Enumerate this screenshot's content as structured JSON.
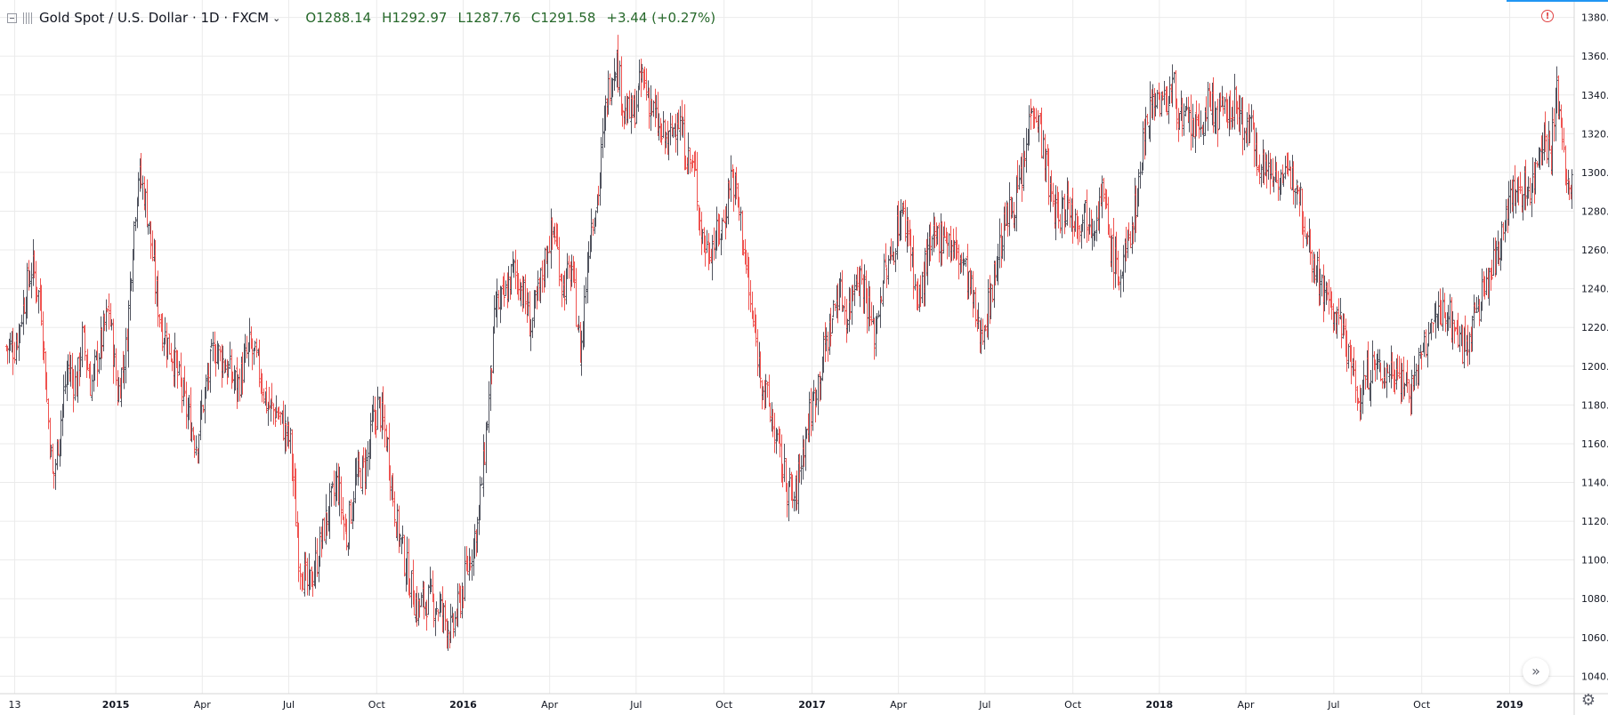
{
  "legend": {
    "title": "Gold Spot / U.S. Dollar · 1D · FXCM",
    "open": "O1288.14",
    "high": "H1292.97",
    "low": "L1287.76",
    "close": "C1291.58",
    "change": "+3.44 (+0.27%)"
  },
  "colors": {
    "up": "#26a69a",
    "down": "#ef5350",
    "bar": "#50535e",
    "grid": "#ebebeb",
    "axis_text": "#131722",
    "ohlc_text": "#26682a"
  },
  "icons": {
    "alert": "alert-circle-icon",
    "scroll": "double-chevron-right-icon",
    "settings": "gear-icon"
  },
  "chart_data": {
    "type": "ohlc",
    "y_ticks": [
      "1040.00",
      "1060.00",
      "1080.00",
      "1100.00",
      "1120.00",
      "1140.00",
      "1160.00",
      "1180.00",
      "1200.00",
      "1220.00",
      "1240.00",
      "1260.00",
      "1280.00",
      "1300.00",
      "1320.00",
      "1340.00",
      "1360.00",
      "1380.00"
    ],
    "ylim": [
      1031,
      1389
    ],
    "x_ticks": [
      {
        "label": "13",
        "t": 0
      },
      {
        "label": "2015",
        "t": 3.45
      },
      {
        "label": "Apr",
        "t": 6.4
      },
      {
        "label": "Jul",
        "t": 9.35
      },
      {
        "label": "Oct",
        "t": 12.35
      },
      {
        "label": "2016",
        "t": 15.3
      },
      {
        "label": "Apr",
        "t": 18.25
      },
      {
        "label": "Jul",
        "t": 21.2
      },
      {
        "label": "Oct",
        "t": 24.2
      },
      {
        "label": "2017",
        "t": 27.2
      },
      {
        "label": "Apr",
        "t": 30.15
      },
      {
        "label": "Jul",
        "t": 33.1
      },
      {
        "label": "Oct",
        "t": 36.1
      },
      {
        "label": "2018",
        "t": 39.05
      },
      {
        "label": "Apr",
        "t": 42
      },
      {
        "label": "Jul",
        "t": 45
      },
      {
        "label": "Oct",
        "t": 48
      },
      {
        "label": "2019",
        "t": 51
      },
      {
        "label": "",
        "t": 54
      }
    ],
    "x_range_months": [
      -0.5,
      53.2
    ],
    "anchors": [
      [
        0,
        1210
      ],
      [
        0.4,
        1240
      ],
      [
        0.6,
        1252
      ],
      [
        0.9,
        1230
      ],
      [
        1.1,
        1180
      ],
      [
        1.3,
        1140
      ],
      [
        1.5,
        1165
      ],
      [
        1.8,
        1200
      ],
      [
        2.1,
        1190
      ],
      [
        2.3,
        1215
      ],
      [
        2.6,
        1190
      ],
      [
        2.9,
        1210
      ],
      [
        3.2,
        1230
      ],
      [
        3.5,
        1185
      ],
      [
        3.8,
        1210
      ],
      [
        4.0,
        1260
      ],
      [
        4.2,
        1300
      ],
      [
        4.4,
        1290
      ],
      [
        4.6,
        1270
      ],
      [
        4.8,
        1240
      ],
      [
        5.0,
        1220
      ],
      [
        5.4,
        1205
      ],
      [
        5.8,
        1180
      ],
      [
        6.2,
        1160
      ],
      [
        6.4,
        1180
      ],
      [
        6.8,
        1210
      ],
      [
        7.2,
        1200
      ],
      [
        7.6,
        1190
      ],
      [
        8.0,
        1210
      ],
      [
        8.3,
        1200
      ],
      [
        8.6,
        1180
      ],
      [
        9.0,
        1175
      ],
      [
        9.4,
        1160
      ],
      [
        9.7,
        1100
      ],
      [
        10.0,
        1085
      ],
      [
        10.3,
        1100
      ],
      [
        10.6,
        1120
      ],
      [
        11.0,
        1140
      ],
      [
        11.3,
        1110
      ],
      [
        11.6,
        1140
      ],
      [
        12.0,
        1150
      ],
      [
        12.2,
        1170
      ],
      [
        12.4,
        1180
      ],
      [
        12.7,
        1160
      ],
      [
        13.0,
        1120
      ],
      [
        13.3,
        1100
      ],
      [
        13.7,
        1075
      ],
      [
        14.1,
        1080
      ],
      [
        14.5,
        1075
      ],
      [
        14.9,
        1062
      ],
      [
        15.2,
        1080
      ],
      [
        15.5,
        1100
      ],
      [
        15.8,
        1120
      ],
      [
        16.1,
        1170
      ],
      [
        16.4,
        1230
      ],
      [
        16.7,
        1235
      ],
      [
        17.0,
        1250
      ],
      [
        17.3,
        1240
      ],
      [
        17.6,
        1220
      ],
      [
        17.9,
        1240
      ],
      [
        18.2,
        1265
      ],
      [
        18.4,
        1270
      ],
      [
        18.7,
        1240
      ],
      [
        19.0,
        1250
      ],
      [
        19.3,
        1205
      ],
      [
        19.6,
        1270
      ],
      [
        19.9,
        1290
      ],
      [
        20.2,
        1340
      ],
      [
        20.5,
        1360
      ],
      [
        20.8,
        1330
      ],
      [
        21.1,
        1330
      ],
      [
        21.4,
        1350
      ],
      [
        21.7,
        1335
      ],
      [
        22.0,
        1320
      ],
      [
        22.3,
        1315
      ],
      [
        22.6,
        1330
      ],
      [
        22.9,
        1310
      ],
      [
        23.2,
        1300
      ],
      [
        23.4,
        1270
      ],
      [
        23.6,
        1260
      ],
      [
        23.9,
        1265
      ],
      [
        24.2,
        1275
      ],
      [
        24.4,
        1300
      ],
      [
        24.6,
        1290
      ],
      [
        24.8,
        1270
      ],
      [
        25.1,
        1230
      ],
      [
        25.4,
        1200
      ],
      [
        25.7,
        1180
      ],
      [
        26.0,
        1160
      ],
      [
        26.3,
        1140
      ],
      [
        26.6,
        1130
      ],
      [
        26.9,
        1160
      ],
      [
        27.2,
        1180
      ],
      [
        27.5,
        1200
      ],
      [
        27.8,
        1220
      ],
      [
        28.1,
        1240
      ],
      [
        28.4,
        1225
      ],
      [
        28.7,
        1250
      ],
      [
        29.0,
        1240
      ],
      [
        29.3,
        1215
      ],
      [
        29.6,
        1245
      ],
      [
        29.9,
        1255
      ],
      [
        30.2,
        1280
      ],
      [
        30.5,
        1270
      ],
      [
        30.8,
        1230
      ],
      [
        31.1,
        1255
      ],
      [
        31.4,
        1265
      ],
      [
        31.7,
        1270
      ],
      [
        32.0,
        1260
      ],
      [
        32.3,
        1255
      ],
      [
        32.6,
        1240
      ],
      [
        32.9,
        1215
      ],
      [
        33.2,
        1230
      ],
      [
        33.5,
        1255
      ],
      [
        33.8,
        1275
      ],
      [
        34.1,
        1285
      ],
      [
        34.4,
        1300
      ],
      [
        34.7,
        1340
      ],
      [
        35.0,
        1320
      ],
      [
        35.3,
        1290
      ],
      [
        35.6,
        1275
      ],
      [
        35.9,
        1285
      ],
      [
        36.2,
        1275
      ],
      [
        36.5,
        1280
      ],
      [
        36.8,
        1275
      ],
      [
        37.1,
        1290
      ],
      [
        37.4,
        1260
      ],
      [
        37.7,
        1245
      ],
      [
        38.0,
        1265
      ],
      [
        38.3,
        1290
      ],
      [
        38.6,
        1330
      ],
      [
        38.9,
        1340
      ],
      [
        39.2,
        1335
      ],
      [
        39.5,
        1345
      ],
      [
        39.8,
        1325
      ],
      [
        40.1,
        1325
      ],
      [
        40.4,
        1320
      ],
      [
        40.7,
        1335
      ],
      [
        41.0,
        1330
      ],
      [
        41.3,
        1330
      ],
      [
        41.6,
        1335
      ],
      [
        41.9,
        1325
      ],
      [
        42.2,
        1320
      ],
      [
        42.5,
        1305
      ],
      [
        42.8,
        1300
      ],
      [
        43.1,
        1300
      ],
      [
        43.4,
        1295
      ],
      [
        43.7,
        1300
      ],
      [
        44.0,
        1275
      ],
      [
        44.3,
        1255
      ],
      [
        44.6,
        1240
      ],
      [
        44.9,
        1230
      ],
      [
        45.2,
        1220
      ],
      [
        45.5,
        1210
      ],
      [
        45.8,
        1180
      ],
      [
        46.1,
        1195
      ],
      [
        46.4,
        1200
      ],
      [
        46.7,
        1195
      ],
      [
        47.0,
        1200
      ],
      [
        47.3,
        1195
      ],
      [
        47.6,
        1188
      ],
      [
        47.9,
        1200
      ],
      [
        48.2,
        1215
      ],
      [
        48.5,
        1225
      ],
      [
        48.8,
        1230
      ],
      [
        49.1,
        1220
      ],
      [
        49.4,
        1210
      ],
      [
        49.7,
        1220
      ],
      [
        50.0,
        1235
      ],
      [
        50.3,
        1245
      ],
      [
        50.6,
        1260
      ],
      [
        50.9,
        1285
      ],
      [
        51.2,
        1290
      ],
      [
        51.5,
        1290
      ],
      [
        51.8,
        1295
      ],
      [
        52.1,
        1320
      ],
      [
        52.4,
        1310
      ],
      [
        52.6,
        1340
      ],
      [
        52.8,
        1320
      ],
      [
        53.0,
        1285
      ],
      [
        53.2,
        1300
      ]
    ],
    "last_bar": {
      "open": 1288.14,
      "high": 1292.97,
      "low": 1287.76,
      "close": 1291.58
    },
    "grid": true,
    "price_axis": "right"
  }
}
